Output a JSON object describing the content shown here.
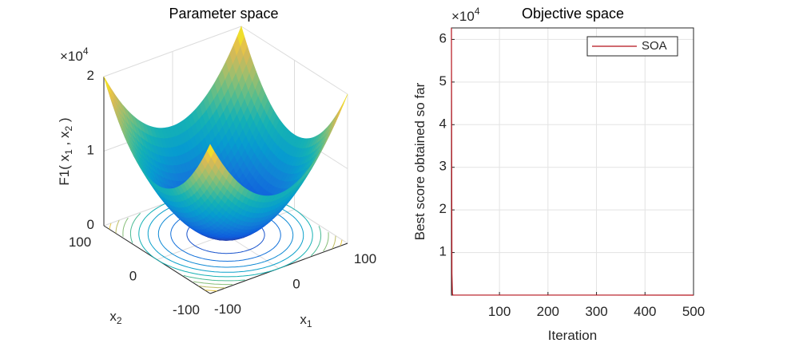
{
  "chart_data": [
    {
      "type": "surface3d",
      "title": "Parameter space",
      "xlabel": "x_1",
      "ylabel": "x_2",
      "zlabel": "F1( x_1 , x_2 )",
      "zexponent": "×10^4",
      "xlim": [
        -100,
        100
      ],
      "ylim": [
        -100,
        100
      ],
      "zlim": [
        0,
        20000
      ],
      "xticks": [
        -100,
        0,
        100
      ],
      "yticks": [
        -100,
        0,
        100
      ],
      "zticks": [
        0,
        {
          "value": 10000,
          "label": "1"
        },
        {
          "value": 20000,
          "label": "2"
        }
      ],
      "contour": true,
      "grid": true
    },
    {
      "type": "line",
      "title": "Objective space",
      "xlabel": "Iteration",
      "ylabel": "Best score obtained so far",
      "yexponent": "×10^4",
      "xlim": [
        1,
        500
      ],
      "ylim": [
        0,
        62700
      ],
      "xticks": [
        100,
        200,
        300,
        400,
        500
      ],
      "yticks": [
        {
          "value": 10000,
          "label": "1"
        },
        {
          "value": 20000,
          "label": "2"
        },
        {
          "value": 30000,
          "label": "3"
        },
        {
          "value": 40000,
          "label": "4"
        },
        {
          "value": 50000,
          "label": "5"
        },
        {
          "value": 60000,
          "label": "6"
        }
      ],
      "series": [
        {
          "name": "SOA",
          "color": "#b5121b",
          "x": [
            1,
            2,
            3,
            4,
            500
          ],
          "values": [
            62700,
            5000,
            300,
            20,
            0
          ]
        }
      ],
      "legend": "northeast",
      "grid": true
    }
  ]
}
